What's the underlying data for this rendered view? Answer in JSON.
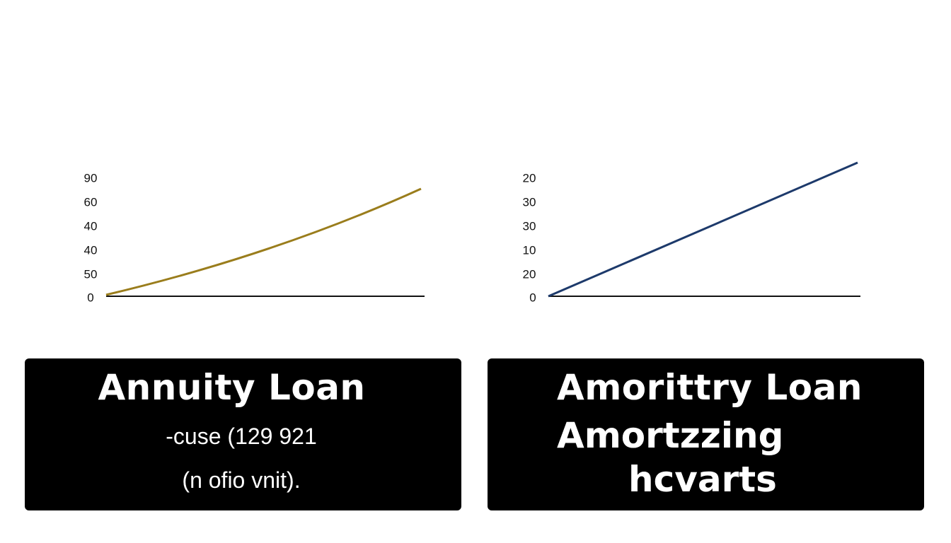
{
  "left": {
    "y_labels": [
      90,
      60,
      40,
      40,
      50,
      0
    ],
    "title": "Annuity Loan",
    "lines": [
      "-cuse (129 921",
      "(n ofio vnit)."
    ]
  },
  "right": {
    "y_labels": [
      20,
      30,
      30,
      10,
      20,
      0
    ],
    "title": "Amorittry Loan",
    "lines": [
      "Amortzzing",
      "hcvarts"
    ]
  }
}
